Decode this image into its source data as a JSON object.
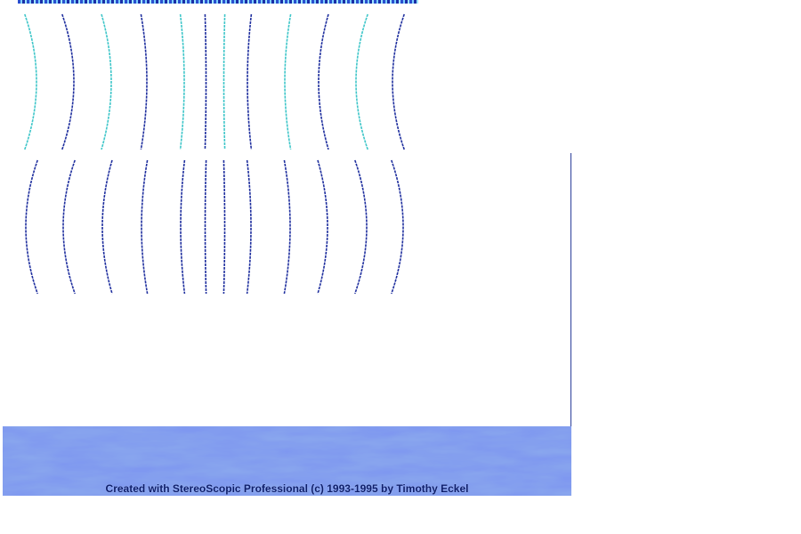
{
  "image": {
    "description_tags": [
      "stereogram",
      "wavy-lines",
      "blue-texture"
    ],
    "colors": {
      "wave_dark": "#1f2f9e",
      "wave_light": "#3fc6c9",
      "banner_base": "#4a68e0",
      "banner_light": "#a9bcff",
      "banner_dark": "#1a2a9a",
      "text": "#0c1d6b"
    }
  },
  "banner": {
    "credit_text": "Created with StereoScopic Professional (c) 1993-1995 by Timothy Eckel"
  }
}
